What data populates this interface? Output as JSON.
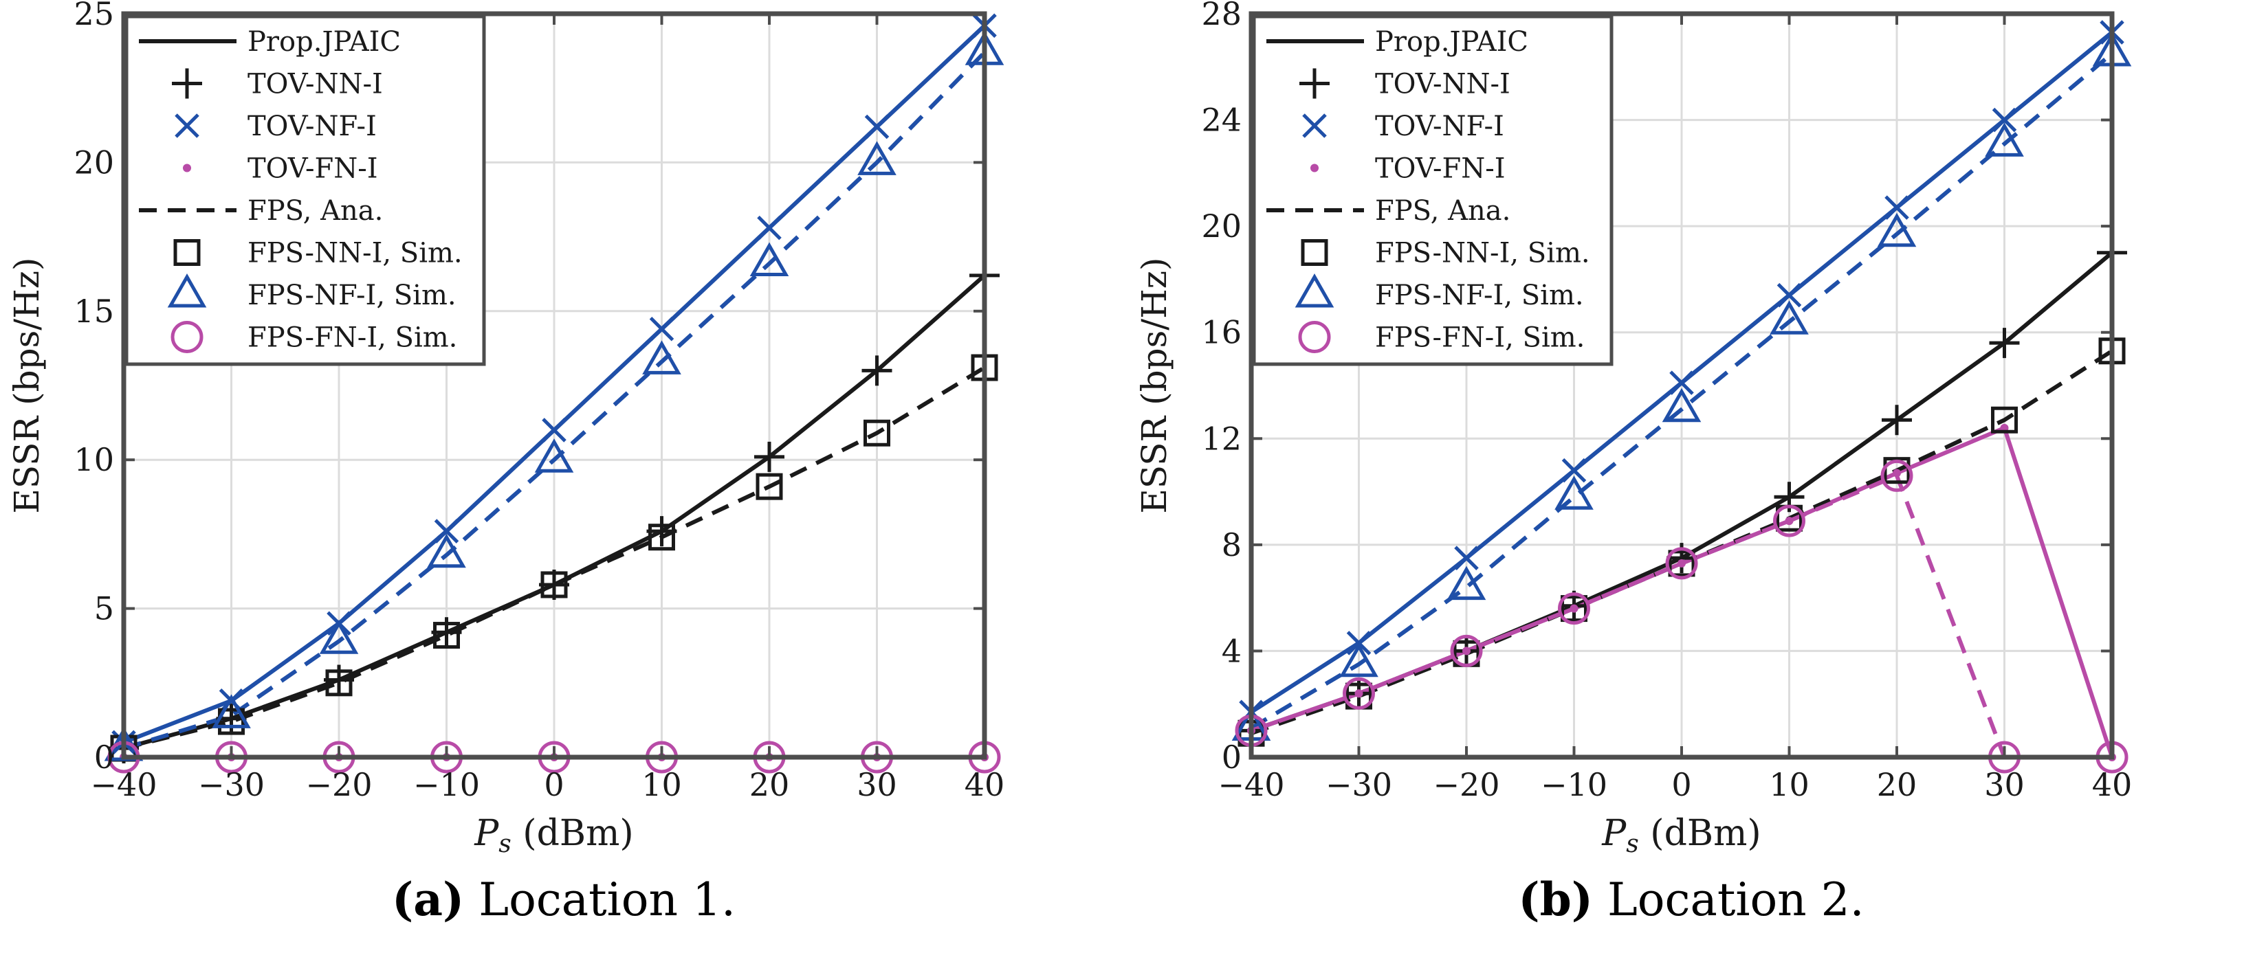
{
  "colors": {
    "black": "#1a1a1a",
    "blue": "#1f4fa8",
    "magenta": "#b84ba7",
    "grid": "#dcdcdc",
    "axis": "#4d4d4d"
  },
  "legend": [
    {
      "label": "Prop.JPAIC",
      "symbol": "line-solid",
      "color": "black"
    },
    {
      "label": "TOV-NN-I",
      "symbol": "plus",
      "color": "black"
    },
    {
      "label": "TOV-NF-I",
      "symbol": "x",
      "color": "blue"
    },
    {
      "label": "TOV-FN-I",
      "symbol": "dot",
      "color": "magenta"
    },
    {
      "label": "FPS, Ana.",
      "symbol": "line-dashed",
      "color": "black"
    },
    {
      "label": "FPS-NN-I, Sim.",
      "symbol": "square",
      "color": "black"
    },
    {
      "label": "FPS-NF-I, Sim.",
      "symbol": "triangle",
      "color": "blue"
    },
    {
      "label": "FPS-FN-I, Sim.",
      "symbol": "circle",
      "color": "magenta"
    }
  ],
  "chart_data": [
    {
      "type": "line",
      "caption_letter": "(a)",
      "caption_text": "Location 1.",
      "xlabel_var": "P",
      "xlabel_sub": "s",
      "xlabel_unit": "(dBm)",
      "ylabel": "ESSR (bps/Hz)",
      "xlim": [
        -40,
        40
      ],
      "ylim": [
        0,
        25
      ],
      "xticks": [
        -40,
        -30,
        -20,
        -10,
        0,
        10,
        20,
        30,
        40
      ],
      "yticks": [
        0,
        5,
        10,
        15,
        20,
        25
      ],
      "grid": true,
      "legend_position": "top-left",
      "x": [
        -40,
        -30,
        -20,
        -10,
        0,
        10,
        20,
        30,
        40
      ],
      "series": [
        {
          "name": "TOV-NN-I",
          "color": "black",
          "dash": "solid",
          "marker": "plus",
          "values": [
            0.3,
            1.3,
            2.6,
            4.2,
            5.8,
            7.6,
            10.1,
            13.0,
            16.2
          ]
        },
        {
          "name": "TOV-NF-I",
          "color": "blue",
          "dash": "solid",
          "marker": "x",
          "values": [
            0.5,
            1.9,
            4.5,
            7.6,
            11.0,
            14.4,
            17.8,
            21.2,
            24.6
          ]
        },
        {
          "name": "TOV-FN-I",
          "color": "magenta",
          "dash": "solid",
          "marker": "dot",
          "values": [
            0,
            0,
            0,
            0,
            0,
            0,
            0,
            0,
            0
          ]
        },
        {
          "name": "FPS-NN-I, Sim.",
          "color": "black",
          "dash": "dashed",
          "marker": "square",
          "values": [
            0.3,
            1.2,
            2.5,
            4.1,
            5.8,
            7.4,
            9.1,
            10.9,
            13.1
          ]
        },
        {
          "name": "FPS-NF-I, Sim.",
          "color": "blue",
          "dash": "dashed",
          "marker": "triangle",
          "values": [
            0.3,
            1.4,
            3.9,
            6.8,
            10.0,
            13.3,
            16.6,
            20.0,
            23.7
          ]
        },
        {
          "name": "FPS-FN-I, Sim.",
          "color": "magenta",
          "dash": "dashed",
          "marker": "circle",
          "values": [
            0,
            0,
            0,
            0,
            0,
            0,
            0,
            0,
            0
          ]
        }
      ]
    },
    {
      "type": "line",
      "caption_letter": "(b)",
      "caption_text": "Location 2.",
      "xlabel_var": "P",
      "xlabel_sub": "s",
      "xlabel_unit": "(dBm)",
      "ylabel": "ESSR (bps/Hz)",
      "xlim": [
        -40,
        40
      ],
      "ylim": [
        0,
        28
      ],
      "xticks": [
        -40,
        -30,
        -20,
        -10,
        0,
        10,
        20,
        30,
        40
      ],
      "yticks": [
        0,
        4,
        8,
        12,
        16,
        20,
        24,
        28
      ],
      "grid": true,
      "legend_position": "top-left",
      "x": [
        -40,
        -30,
        -20,
        -10,
        0,
        10,
        20,
        30,
        40
      ],
      "series": [
        {
          "name": "TOV-NN-I",
          "color": "black",
          "dash": "solid",
          "marker": "plus",
          "values": [
            1.0,
            2.4,
            4.0,
            5.7,
            7.5,
            9.8,
            12.7,
            15.6,
            19.0
          ]
        },
        {
          "name": "TOV-NF-I",
          "color": "blue",
          "dash": "solid",
          "marker": "x",
          "values": [
            1.7,
            4.3,
            7.5,
            10.8,
            14.1,
            17.4,
            20.7,
            24.0,
            27.3
          ]
        },
        {
          "name": "TOV-FN-I",
          "color": "magenta",
          "dash": "solid",
          "marker": "dot",
          "values": [
            1.0,
            2.4,
            4.0,
            5.6,
            7.3,
            8.9,
            10.7,
            12.4,
            0
          ]
        },
        {
          "name": "FPS-NN-I, Sim.",
          "color": "black",
          "dash": "dashed",
          "marker": "square",
          "values": [
            0.9,
            2.3,
            3.9,
            5.6,
            7.3,
            9.0,
            10.8,
            12.7,
            15.3
          ]
        },
        {
          "name": "FPS-NF-I, Sim.",
          "color": "blue",
          "dash": "dashed",
          "marker": "triangle",
          "values": [
            1.1,
            3.5,
            6.4,
            9.8,
            13.1,
            16.4,
            19.7,
            23.1,
            26.5
          ]
        },
        {
          "name": "FPS-FN-I, Sim.",
          "color": "magenta",
          "dash": "dashed",
          "marker": "circle",
          "values": [
            1.0,
            2.4,
            4.0,
            5.6,
            7.3,
            8.9,
            10.6,
            0,
            0
          ]
        }
      ]
    }
  ]
}
